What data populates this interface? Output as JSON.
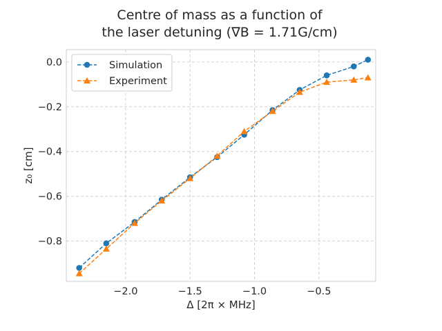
{
  "chart_data": {
    "type": "line",
    "title_line1": "Centre of mass as a function of",
    "title_line2": "the laser detuning (∇B = 1.71G/cm)",
    "xlabel": "Δ [2π × MHz]",
    "ylabel": "z₀ [cm]",
    "xlim": [
      -2.46,
      -0.06
    ],
    "ylim": [
      -0.98,
      0.055
    ],
    "xticks": [
      -2.0,
      -1.5,
      -1.0,
      -0.5
    ],
    "xtick_labels": [
      "−2.0",
      "−1.5",
      "−1.0",
      "−0.5"
    ],
    "yticks": [
      0.0,
      -0.2,
      -0.4,
      -0.6,
      -0.8
    ],
    "ytick_labels": [
      "0.0",
      "−0.2",
      "−0.4",
      "−0.6",
      "−0.8"
    ],
    "grid": true,
    "legend_position": "top-left",
    "series": [
      {
        "name": "Simulation",
        "color": "#1f77b4",
        "marker": "circle",
        "linestyle": "dashed",
        "x": [
          -2.36,
          -2.15,
          -1.93,
          -1.72,
          -1.5,
          -1.29,
          -1.08,
          -0.86,
          -0.65,
          -0.44,
          -0.23,
          -0.12
        ],
        "y": [
          -0.92,
          -0.81,
          -0.715,
          -0.615,
          -0.515,
          -0.425,
          -0.325,
          -0.215,
          -0.125,
          -0.06,
          -0.02,
          0.01
        ]
      },
      {
        "name": "Experiment",
        "color": "#ff7f0e",
        "marker": "triangle",
        "linestyle": "dashed",
        "x": [
          -2.36,
          -2.15,
          -1.93,
          -1.72,
          -1.5,
          -1.29,
          -1.08,
          -0.86,
          -0.65,
          -0.44,
          -0.23,
          -0.12
        ],
        "y": [
          -0.945,
          -0.835,
          -0.72,
          -0.62,
          -0.52,
          -0.42,
          -0.31,
          -0.22,
          -0.135,
          -0.09,
          -0.08,
          -0.07
        ]
      }
    ]
  }
}
